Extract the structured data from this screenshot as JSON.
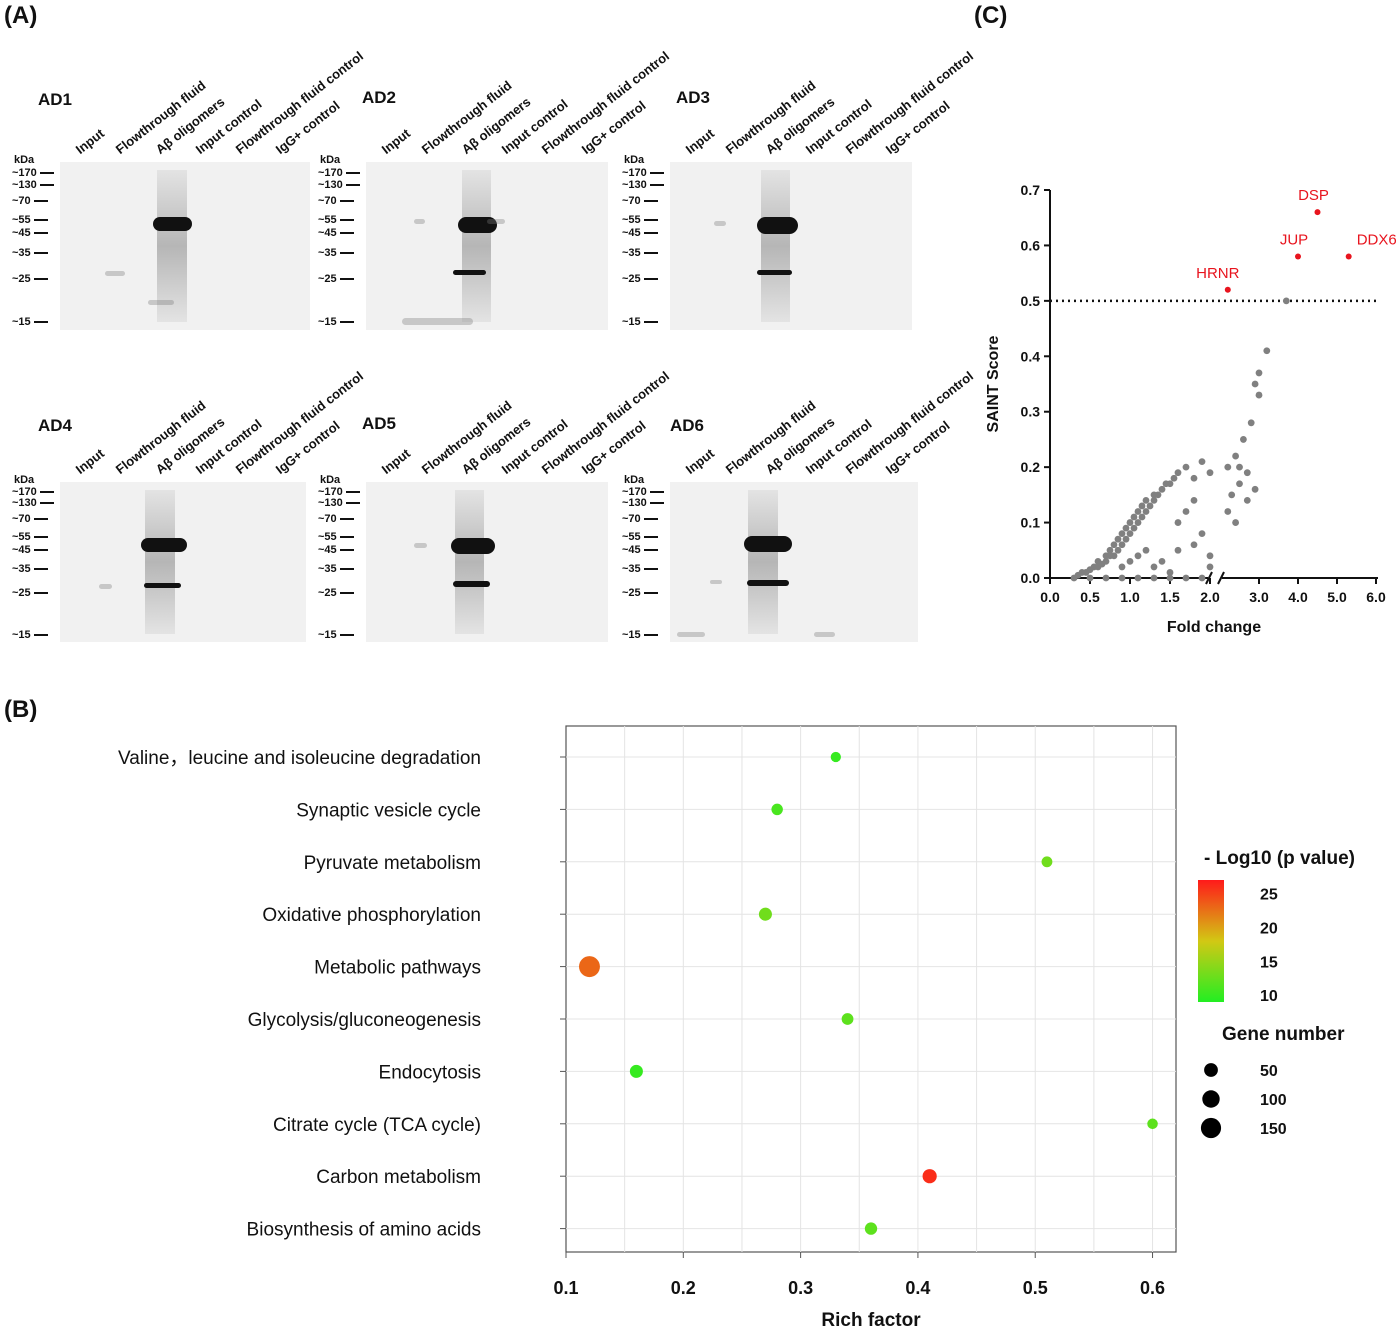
{
  "panel_labels": {
    "a": "(A)",
    "b": "(B)",
    "c": "(C)"
  },
  "blots": [
    {
      "name": "AD1"
    },
    {
      "name": "AD2"
    },
    {
      "name": "AD3"
    },
    {
      "name": "AD4"
    },
    {
      "name": "AD5"
    },
    {
      "name": "AD6"
    }
  ],
  "lanes": [
    "Input",
    "Flowthrough fluid",
    "Aβ oligomers",
    "Input control",
    "Flowthrough fluid control",
    "IgG+ control"
  ],
  "kda_unit": "kDa",
  "markers": [
    "~170",
    "~130",
    "~70",
    "~55",
    "~45",
    "~35",
    "~25",
    "~15"
  ],
  "chart_data": [
    {
      "id": "saint",
      "type": "scatter",
      "xlabel": "Fold change",
      "ylabel": "SAINT Score",
      "xticks": [
        "0.0",
        "0.5",
        "1.0",
        "1.5",
        "2.0",
        "3.0",
        "4.0",
        "5.0",
        "6.0"
      ],
      "yticks": [
        "0.0",
        "0.1",
        "0.2",
        "0.3",
        "0.4",
        "0.5",
        "0.6",
        "0.7"
      ],
      "ylim": [
        0,
        0.7
      ],
      "x_axis_break": 2.0,
      "threshold": 0.5,
      "highlight_color": "#e8141e",
      "point_color": "#808080",
      "highlighted": [
        {
          "label": "HRNR",
          "x": 2.2,
          "y": 0.52
        },
        {
          "label": "JUP",
          "x": 4.0,
          "y": 0.58
        },
        {
          "label": "DSP",
          "x": 4.5,
          "y": 0.66
        },
        {
          "label": "DDX6",
          "x": 5.3,
          "y": 0.58
        }
      ],
      "points": [
        [
          0.3,
          0.0
        ],
        [
          0.35,
          0.005
        ],
        [
          0.4,
          0.01
        ],
        [
          0.45,
          0.01
        ],
        [
          0.5,
          0.015
        ],
        [
          0.55,
          0.02
        ],
        [
          0.6,
          0.02
        ],
        [
          0.6,
          0.03
        ],
        [
          0.65,
          0.025
        ],
        [
          0.7,
          0.03
        ],
        [
          0.7,
          0.04
        ],
        [
          0.75,
          0.04
        ],
        [
          0.75,
          0.05
        ],
        [
          0.8,
          0.04
        ],
        [
          0.8,
          0.06
        ],
        [
          0.85,
          0.05
        ],
        [
          0.85,
          0.07
        ],
        [
          0.9,
          0.06
        ],
        [
          0.9,
          0.08
        ],
        [
          0.95,
          0.07
        ],
        [
          0.95,
          0.09
        ],
        [
          1.0,
          0.08
        ],
        [
          1.0,
          0.1
        ],
        [
          1.05,
          0.09
        ],
        [
          1.05,
          0.11
        ],
        [
          1.1,
          0.1
        ],
        [
          1.1,
          0.12
        ],
        [
          1.15,
          0.11
        ],
        [
          1.15,
          0.13
        ],
        [
          1.2,
          0.12
        ],
        [
          1.2,
          0.14
        ],
        [
          1.25,
          0.13
        ],
        [
          1.3,
          0.14
        ],
        [
          1.3,
          0.15
        ],
        [
          1.35,
          0.15
        ],
        [
          1.4,
          0.16
        ],
        [
          1.45,
          0.17
        ],
        [
          1.5,
          0.17
        ],
        [
          1.55,
          0.18
        ],
        [
          1.6,
          0.19
        ],
        [
          1.7,
          0.2
        ],
        [
          1.8,
          0.18
        ],
        [
          1.9,
          0.21
        ],
        [
          2.0,
          0.19
        ],
        [
          1.6,
          0.1
        ],
        [
          1.7,
          0.12
        ],
        [
          1.8,
          0.14
        ],
        [
          1.9,
          0.08
        ],
        [
          1.3,
          0.02
        ],
        [
          1.4,
          0.03
        ],
        [
          1.5,
          0.01
        ],
        [
          1.6,
          0.05
        ],
        [
          1.8,
          0.06
        ],
        [
          2.0,
          0.04
        ],
        [
          1.2,
          0.05
        ],
        [
          1.0,
          0.03
        ],
        [
          0.9,
          0.02
        ],
        [
          1.1,
          0.04
        ],
        [
          0.5,
          0.0
        ],
        [
          0.7,
          0.0
        ],
        [
          0.9,
          0.0
        ],
        [
          1.1,
          0.0
        ],
        [
          1.3,
          0.0
        ],
        [
          1.5,
          0.0
        ],
        [
          1.7,
          0.0
        ],
        [
          1.9,
          0.0
        ],
        [
          2.0,
          0.02
        ],
        [
          2.2,
          0.2
        ],
        [
          2.3,
          0.15
        ],
        [
          2.4,
          0.22
        ],
        [
          2.5,
          0.17
        ],
        [
          2.6,
          0.25
        ],
        [
          2.7,
          0.14
        ],
        [
          2.8,
          0.28
        ],
        [
          2.9,
          0.35
        ],
        [
          3.0,
          0.37
        ],
        [
          3.0,
          0.33
        ],
        [
          3.2,
          0.41
        ],
        [
          2.5,
          0.2
        ],
        [
          2.7,
          0.19
        ],
        [
          2.9,
          0.16
        ],
        [
          2.2,
          0.12
        ],
        [
          2.4,
          0.1
        ],
        [
          3.7,
          0.5
        ]
      ]
    },
    {
      "id": "kegg",
      "type": "scatter",
      "xlabel": "Rich factor",
      "xticks": [
        0.1,
        0.2,
        0.3,
        0.4,
        0.5,
        0.6
      ],
      "xlim": [
        0.1,
        0.62
      ],
      "categories": [
        "Valine，leucine and isoleucine degradation",
        "Synaptic vesicle cycle",
        "Pyruvate metabolism",
        "Oxidative phosphorylation",
        "Metabolic pathways",
        "Glycolysis/gluconeogenesis",
        "Endocytosis",
        "Citrate cycle (TCA cycle)",
        "Carbon metabolism",
        "Biosynthesis of amino acids"
      ],
      "points": [
        {
          "rich": 0.33,
          "neglogp": 10,
          "genes": 18
        },
        {
          "rich": 0.28,
          "neglogp": 11,
          "genes": 27
        },
        {
          "rich": 0.51,
          "neglogp": 13,
          "genes": 22
        },
        {
          "rich": 0.27,
          "neglogp": 13,
          "genes": 42
        },
        {
          "rich": 0.12,
          "neglogp": 23,
          "genes": 165
        },
        {
          "rich": 0.34,
          "neglogp": 12,
          "genes": 30
        },
        {
          "rich": 0.16,
          "neglogp": 10,
          "genes": 42
        },
        {
          "rich": 0.6,
          "neglogp": 12,
          "genes": 20
        },
        {
          "rich": 0.41,
          "neglogp": 26,
          "genes": 55
        },
        {
          "rich": 0.36,
          "neglogp": 12,
          "genes": 35
        }
      ],
      "color_legend_title": "- Log10 (p value)",
      "color_ticks": [
        25,
        20,
        15,
        10
      ],
      "color_range": [
        9,
        27
      ],
      "color_low": "#22ee22",
      "color_high": "#ff1a1a",
      "size_legend_title": "Gene number",
      "size_ticks": [
        50,
        100,
        150
      ]
    }
  ]
}
